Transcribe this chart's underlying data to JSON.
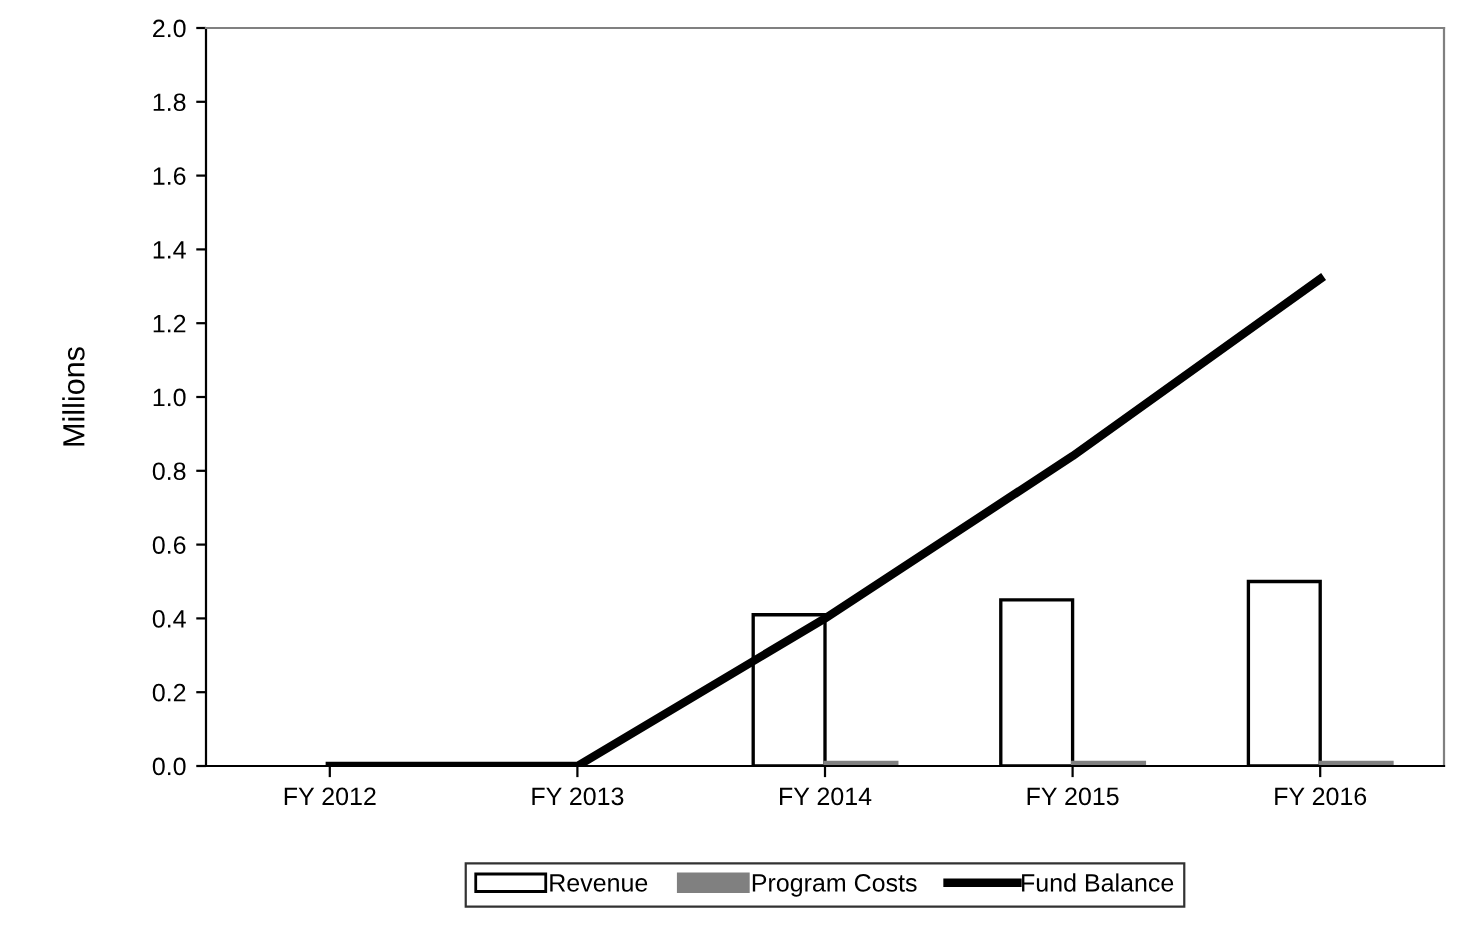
{
  "chart_data": {
    "type": "bar",
    "ylabel": "Millions",
    "categories": [
      "FY 2012",
      "FY 2013",
      "FY 2014",
      "FY 2015",
      "FY 2016"
    ],
    "series": [
      {
        "name": "Revenue",
        "color": "#ffffff",
        "values": [
          0,
          0,
          0.41,
          0.45,
          0.5
        ]
      },
      {
        "name": "Program Costs",
        "color": "#808080",
        "values": [
          0,
          0,
          0.01,
          0.01,
          0.01
        ]
      },
      {
        "name": "Fund Balance",
        "type": "line",
        "color": "#000000",
        "values": [
          0,
          0,
          0.4,
          0.84,
          1.32
        ]
      }
    ],
    "ylim": [
      0,
      2.0
    ],
    "yticks": [
      {
        "value": 0,
        "label": "0.0"
      },
      {
        "value": 0.2,
        "label": "0.2"
      },
      {
        "value": 0.4,
        "label": "0.4"
      },
      {
        "value": 0.6,
        "label": "0.6"
      },
      {
        "value": 0.8,
        "label": "0.8"
      },
      {
        "value": 1.0,
        "label": "1.0"
      },
      {
        "value": 1.2,
        "label": "1.2"
      },
      {
        "value": 1.4,
        "label": "1.4"
      },
      {
        "value": 1.6,
        "label": "1.6"
      },
      {
        "value": 1.8,
        "label": "1.8"
      },
      {
        "value": 2.0,
        "label": "2.0"
      }
    ],
    "grid": false,
    "legend": "bottom",
    "marker": "none",
    "line_style": "solid"
  }
}
